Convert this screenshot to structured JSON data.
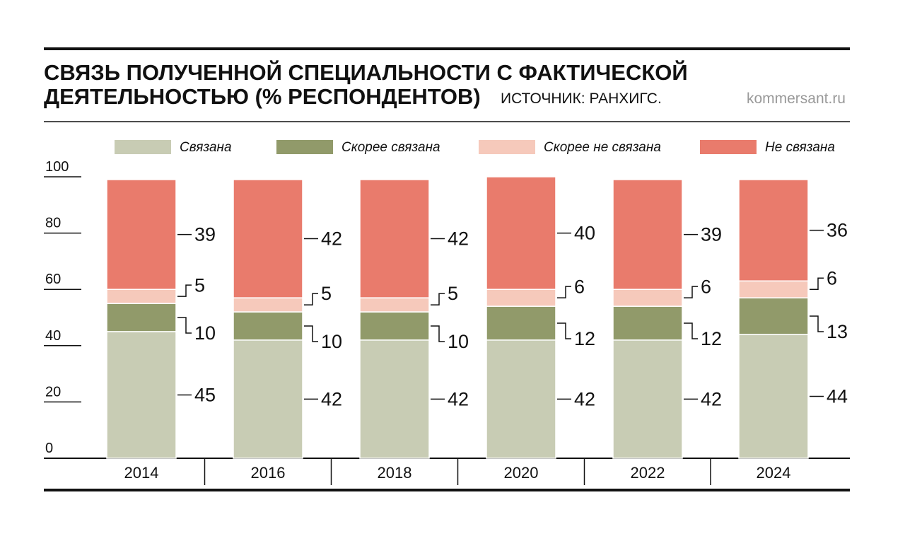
{
  "chart_data": {
    "type": "stacked-bar",
    "title": [
      "СВЯЗЬ ПОЛУЧЕННОЙ СПЕЦИАЛЬНОСТИ С ФАКТИЧЕСКОЙ",
      "ДЕЯТЕЛЬНОСТЬЮ (% РЕСПОНДЕНТОВ)"
    ],
    "source": "ИСТОЧНИК: РАНХИГС.",
    "site": "kommersant.ru",
    "categories": [
      "2014",
      "2016",
      "2018",
      "2020",
      "2022",
      "2024"
    ],
    "series": [
      {
        "name": "Связана",
        "color": "#c8ccb4",
        "values": [
          45,
          42,
          42,
          42,
          42,
          44
        ]
      },
      {
        "name": "Скорее связана",
        "color": "#919a6a",
        "values": [
          10,
          10,
          10,
          12,
          12,
          13
        ]
      },
      {
        "name": "Скорее не связана",
        "color": "#f6c9bb",
        "values": [
          5,
          5,
          5,
          6,
          6,
          6
        ]
      },
      {
        "name": "Не связана",
        "color": "#e97b6c",
        "values": [
          39,
          42,
          42,
          40,
          39,
          36
        ]
      }
    ],
    "ylim": [
      0,
      100
    ],
    "yticks": [
      0,
      20,
      40,
      60,
      80,
      100
    ]
  }
}
